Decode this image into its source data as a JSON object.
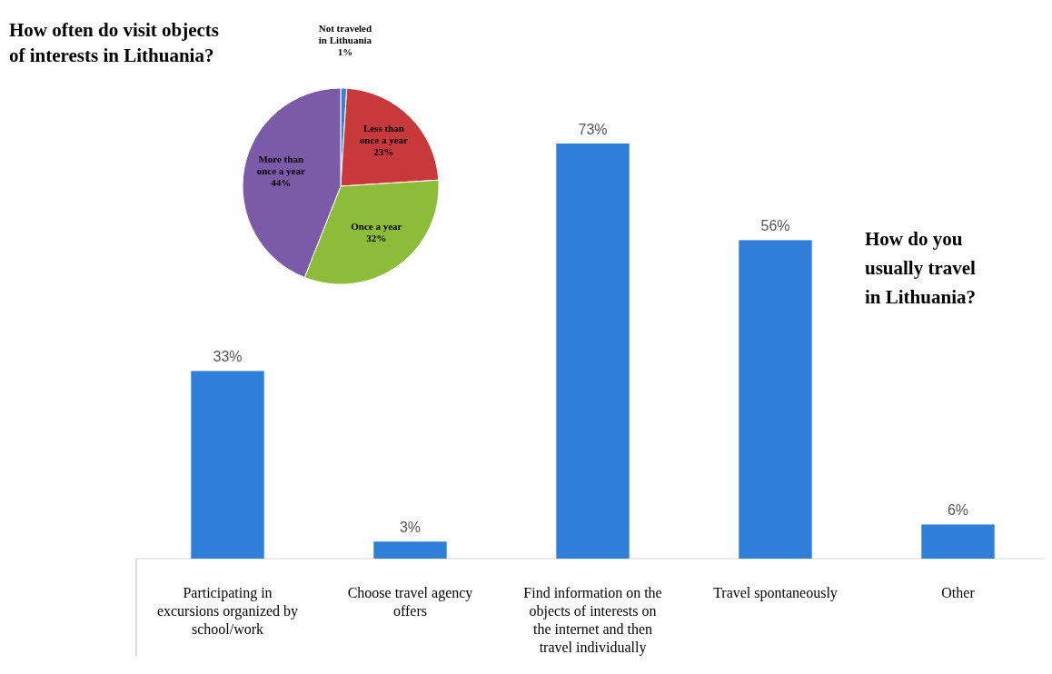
{
  "chart_data": [
    {
      "type": "pie",
      "title": "How often do visit objects of interests in Lithuania?",
      "categories": [
        "Not traveled in Lithuania",
        "Less than once a year",
        "Once a year",
        "More than once a year"
      ],
      "values": [
        1,
        23,
        32,
        44
      ],
      "colors": [
        "#3d82cc",
        "#c7393a",
        "#8dbb3a",
        "#7b5aa8"
      ],
      "value_labels": [
        "1%",
        "23%",
        "32%",
        "44%"
      ]
    },
    {
      "type": "bar",
      "title": "How do you usually travel in Lithuania?",
      "categories": [
        "Participating in excursions organized by school/work",
        "Choose travel agency offers",
        "Find information on the objects of interests on the internet and then travel individually",
        "Travel spontaneously",
        "Other"
      ],
      "values": [
        33,
        3,
        73,
        56,
        6
      ],
      "color": "#2f7fd8",
      "value_labels": [
        "33%",
        "3%",
        "73%",
        "56%",
        "6%"
      ]
    }
  ]
}
